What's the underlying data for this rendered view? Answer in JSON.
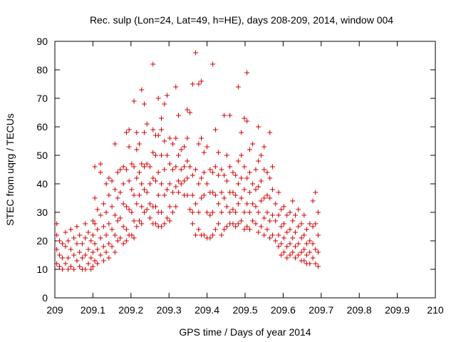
{
  "chart_data": {
    "type": "scatter",
    "title": "Rec. sulp (Lon=24, Lat=49, h=HE), days 208-209, 2014, window 004",
    "xlabel": "GPS time / Days of year 2014",
    "ylabel": "STEC from uqrg / TECUs",
    "xlim": [
      209,
      210
    ],
    "ylim": [
      0,
      90
    ],
    "x_ticks": [
      "209",
      "209.1",
      "209.2",
      "209.3",
      "209.4",
      "209.5",
      "209.6",
      "209.7",
      "209.8",
      "209.9",
      "210"
    ],
    "y_ticks": [
      "0",
      "10",
      "20",
      "30",
      "40",
      "50",
      "60",
      "70",
      "80",
      "90"
    ],
    "marker": "+",
    "color": "#d00000",
    "grid": false,
    "legend": "none",
    "points": [
      [
        209.005,
        26
      ],
      [
        209.005,
        22
      ],
      [
        209.005,
        17
      ],
      [
        209.005,
        12
      ],
      [
        209.012,
        20
      ],
      [
        209.012,
        15
      ],
      [
        209.012,
        11
      ],
      [
        209.02,
        19
      ],
      [
        209.02,
        14
      ],
      [
        209.02,
        10
      ],
      [
        209.028,
        23
      ],
      [
        209.028,
        18
      ],
      [
        209.028,
        12
      ],
      [
        209.035,
        20
      ],
      [
        209.035,
        14
      ],
      [
        209.035,
        10
      ],
      [
        209.042,
        24
      ],
      [
        209.042,
        17
      ],
      [
        209.042,
        11
      ],
      [
        209.05,
        21
      ],
      [
        209.05,
        15
      ],
      [
        209.05,
        10
      ],
      [
        209.058,
        25
      ],
      [
        209.058,
        19
      ],
      [
        209.058,
        13
      ],
      [
        209.065,
        22
      ],
      [
        209.065,
        16
      ],
      [
        209.065,
        11
      ],
      [
        209.072,
        19
      ],
      [
        209.072,
        14
      ],
      [
        209.072,
        10
      ],
      [
        209.08,
        26
      ],
      [
        209.08,
        21
      ],
      [
        209.08,
        15
      ],
      [
        209.08,
        10
      ],
      [
        209.088,
        23
      ],
      [
        209.088,
        17
      ],
      [
        209.088,
        12
      ],
      [
        209.095,
        20
      ],
      [
        209.095,
        14
      ],
      [
        209.095,
        10
      ],
      [
        209.1,
        27
      ],
      [
        209.1,
        22
      ],
      [
        209.1,
        16
      ],
      [
        209.1,
        11
      ],
      [
        209.105,
        46
      ],
      [
        209.105,
        35
      ],
      [
        209.105,
        26
      ],
      [
        209.105,
        19
      ],
      [
        209.105,
        13
      ],
      [
        209.112,
        31
      ],
      [
        209.112,
        24
      ],
      [
        209.112,
        17
      ],
      [
        209.112,
        12
      ],
      [
        209.12,
        47
      ],
      [
        209.12,
        44
      ],
      [
        209.12,
        29
      ],
      [
        209.12,
        21
      ],
      [
        209.12,
        15
      ],
      [
        209.128,
        33
      ],
      [
        209.128,
        25
      ],
      [
        209.128,
        18
      ],
      [
        209.128,
        13
      ],
      [
        209.135,
        40
      ],
      [
        209.135,
        30
      ],
      [
        209.135,
        22
      ],
      [
        209.135,
        16
      ],
      [
        209.142,
        42
      ],
      [
        209.142,
        36
      ],
      [
        209.142,
        26
      ],
      [
        209.142,
        19
      ],
      [
        209.142,
        14
      ],
      [
        209.15,
        41
      ],
      [
        209.15,
        32
      ],
      [
        209.15,
        24
      ],
      [
        209.15,
        18
      ],
      [
        209.158,
        54
      ],
      [
        209.158,
        38
      ],
      [
        209.158,
        29
      ],
      [
        209.158,
        22
      ],
      [
        209.158,
        16
      ],
      [
        209.165,
        44
      ],
      [
        209.165,
        35
      ],
      [
        209.165,
        27
      ],
      [
        209.165,
        20
      ],
      [
        209.172,
        45
      ],
      [
        209.172,
        37
      ],
      [
        209.172,
        28
      ],
      [
        209.172,
        21
      ],
      [
        209.18,
        46
      ],
      [
        209.18,
        40
      ],
      [
        209.18,
        33
      ],
      [
        209.18,
        25
      ],
      [
        209.18,
        19
      ],
      [
        209.188,
        58
      ],
      [
        209.188,
        45
      ],
      [
        209.188,
        32
      ],
      [
        209.188,
        24
      ],
      [
        209.188,
        20
      ],
      [
        209.195,
        59
      ],
      [
        209.195,
        53
      ],
      [
        209.195,
        41
      ],
      [
        209.195,
        31
      ],
      [
        209.195,
        22
      ],
      [
        209.202,
        47
      ],
      [
        209.202,
        38
      ],
      [
        209.202,
        30
      ],
      [
        209.202,
        22
      ],
      [
        209.208,
        69
      ],
      [
        209.208,
        46
      ],
      [
        209.208,
        36
      ],
      [
        209.208,
        27
      ],
      [
        209.208,
        21
      ],
      [
        209.215,
        58
      ],
      [
        209.215,
        52
      ],
      [
        209.215,
        42
      ],
      [
        209.215,
        33
      ],
      [
        209.215,
        25
      ],
      [
        209.222,
        54
      ],
      [
        209.222,
        44
      ],
      [
        209.222,
        36
      ],
      [
        209.222,
        27
      ],
      [
        209.228,
        73
      ],
      [
        209.228,
        47
      ],
      [
        209.228,
        40
      ],
      [
        209.228,
        32
      ],
      [
        209.228,
        26
      ],
      [
        209.235,
        68
      ],
      [
        209.235,
        58
      ],
      [
        209.235,
        46
      ],
      [
        209.235,
        38
      ],
      [
        209.235,
        30
      ],
      [
        209.242,
        61
      ],
      [
        209.242,
        47
      ],
      [
        209.242,
        37
      ],
      [
        209.242,
        31
      ],
      [
        209.25,
        46
      ],
      [
        209.25,
        40
      ],
      [
        209.25,
        33
      ],
      [
        209.25,
        28
      ],
      [
        209.258,
        82
      ],
      [
        209.258,
        59
      ],
      [
        209.258,
        51
      ],
      [
        209.258,
        42
      ],
      [
        209.258,
        32
      ],
      [
        209.258,
        26
      ],
      [
        209.265,
        57
      ],
      [
        209.265,
        50
      ],
      [
        209.265,
        41
      ],
      [
        209.265,
        32
      ],
      [
        209.265,
        26
      ],
      [
        209.272,
        70
      ],
      [
        209.272,
        57
      ],
      [
        209.272,
        44
      ],
      [
        209.272,
        36
      ],
      [
        209.272,
        30
      ],
      [
        209.272,
        25
      ],
      [
        209.28,
        63
      ],
      [
        209.28,
        59
      ],
      [
        209.28,
        50
      ],
      [
        209.28,
        40
      ],
      [
        209.28,
        30
      ],
      [
        209.28,
        25
      ],
      [
        209.288,
        68
      ],
      [
        209.288,
        55
      ],
      [
        209.288,
        45
      ],
      [
        209.288,
        36
      ],
      [
        209.288,
        26
      ],
      [
        209.295,
        71
      ],
      [
        209.295,
        50
      ],
      [
        209.295,
        38
      ],
      [
        209.295,
        28
      ],
      [
        209.302,
        56
      ],
      [
        209.302,
        47
      ],
      [
        209.302,
        40
      ],
      [
        209.302,
        32
      ],
      [
        209.302,
        27
      ],
      [
        209.31,
        54
      ],
      [
        209.31,
        45
      ],
      [
        209.31,
        37
      ],
      [
        209.31,
        30
      ],
      [
        209.318,
        74
      ],
      [
        209.318,
        56
      ],
      [
        209.318,
        46
      ],
      [
        209.318,
        39
      ],
      [
        209.318,
        32
      ],
      [
        209.325,
        64
      ],
      [
        209.325,
        50
      ],
      [
        209.325,
        41
      ],
      [
        209.325,
        37
      ],
      [
        209.332,
        52
      ],
      [
        209.332,
        45
      ],
      [
        209.332,
        40
      ],
      [
        209.34,
        53
      ],
      [
        209.34,
        46
      ],
      [
        209.34,
        41
      ],
      [
        209.34,
        36
      ],
      [
        209.348,
        66
      ],
      [
        209.348,
        56
      ],
      [
        209.348,
        48
      ],
      [
        209.348,
        42
      ],
      [
        209.348,
        36
      ],
      [
        209.355,
        65
      ],
      [
        209.355,
        46
      ],
      [
        209.355,
        31
      ],
      [
        209.362,
        75
      ],
      [
        209.362,
        43
      ],
      [
        209.362,
        36
      ],
      [
        209.362,
        30
      ],
      [
        209.362,
        26
      ],
      [
        209.37,
        86
      ],
      [
        209.37,
        45
      ],
      [
        209.37,
        33
      ],
      [
        209.37,
        22
      ],
      [
        209.378,
        75
      ],
      [
        209.378,
        54
      ],
      [
        209.378,
        40
      ],
      [
        209.378,
        30
      ],
      [
        209.378,
        24
      ],
      [
        209.385,
        76
      ],
      [
        209.385,
        56
      ],
      [
        209.385,
        42
      ],
      [
        209.385,
        35
      ],
      [
        209.385,
        22
      ],
      [
        209.392,
        51
      ],
      [
        209.392,
        44
      ],
      [
        209.392,
        36
      ],
      [
        209.392,
        22
      ],
      [
        209.4,
        53
      ],
      [
        209.4,
        40
      ],
      [
        209.4,
        30
      ],
      [
        209.4,
        21
      ],
      [
        209.408,
        45
      ],
      [
        209.408,
        37
      ],
      [
        209.408,
        29
      ],
      [
        209.408,
        21
      ],
      [
        209.415,
        82
      ],
      [
        209.415,
        44
      ],
      [
        209.415,
        37
      ],
      [
        209.415,
        30
      ],
      [
        209.415,
        22
      ],
      [
        209.422,
        59
      ],
      [
        209.422,
        46
      ],
      [
        209.422,
        36
      ],
      [
        209.422,
        24
      ],
      [
        209.43,
        51
      ],
      [
        209.43,
        43
      ],
      [
        209.43,
        33
      ],
      [
        209.43,
        26
      ],
      [
        209.438,
        45
      ],
      [
        209.438,
        37
      ],
      [
        209.438,
        30
      ],
      [
        209.438,
        22
      ],
      [
        209.445,
        64
      ],
      [
        209.445,
        43
      ],
      [
        209.445,
        35
      ],
      [
        209.445,
        24
      ],
      [
        209.452,
        50
      ],
      [
        209.452,
        41
      ],
      [
        209.452,
        32
      ],
      [
        209.452,
        25
      ],
      [
        209.46,
        64
      ],
      [
        209.46,
        46
      ],
      [
        209.46,
        37
      ],
      [
        209.46,
        30
      ],
      [
        209.46,
        26
      ],
      [
        209.468,
        44
      ],
      [
        209.468,
        37
      ],
      [
        209.468,
        31
      ],
      [
        209.468,
        26
      ],
      [
        209.475,
        43
      ],
      [
        209.475,
        36
      ],
      [
        209.475,
        30
      ],
      [
        209.475,
        25
      ],
      [
        209.482,
        74
      ],
      [
        209.482,
        48
      ],
      [
        209.482,
        40
      ],
      [
        209.482,
        33
      ],
      [
        209.482,
        26
      ],
      [
        209.49,
        58
      ],
      [
        209.49,
        50
      ],
      [
        209.49,
        42
      ],
      [
        209.49,
        35
      ],
      [
        209.49,
        27
      ],
      [
        209.498,
        63
      ],
      [
        209.498,
        46
      ],
      [
        209.498,
        38
      ],
      [
        209.498,
        30
      ],
      [
        209.498,
        24
      ],
      [
        209.505,
        79
      ],
      [
        209.505,
        62
      ],
      [
        209.505,
        42
      ],
      [
        209.505,
        33
      ],
      [
        209.505,
        25
      ],
      [
        209.512,
        52
      ],
      [
        209.512,
        44
      ],
      [
        209.512,
        37
      ],
      [
        209.512,
        30
      ],
      [
        209.512,
        24
      ],
      [
        209.52,
        54
      ],
      [
        209.52,
        40
      ],
      [
        209.52,
        33
      ],
      [
        209.52,
        27
      ],
      [
        209.528,
        45
      ],
      [
        209.528,
        38
      ],
      [
        209.528,
        32
      ],
      [
        209.528,
        26
      ],
      [
        209.535,
        60
      ],
      [
        209.535,
        48
      ],
      [
        209.535,
        39
      ],
      [
        209.535,
        30
      ],
      [
        209.535,
        23
      ],
      [
        209.542,
        50
      ],
      [
        209.542,
        41
      ],
      [
        209.542,
        34
      ],
      [
        209.542,
        25
      ],
      [
        209.55,
        53
      ],
      [
        209.55,
        45
      ],
      [
        209.55,
        35
      ],
      [
        209.55,
        28
      ],
      [
        209.55,
        22
      ],
      [
        209.558,
        44
      ],
      [
        209.558,
        36
      ],
      [
        209.558,
        30
      ],
      [
        209.558,
        24
      ],
      [
        209.565,
        58
      ],
      [
        209.565,
        42
      ],
      [
        209.565,
        35
      ],
      [
        209.565,
        27
      ],
      [
        209.565,
        21
      ],
      [
        209.572,
        46
      ],
      [
        209.572,
        38
      ],
      [
        209.572,
        29
      ],
      [
        209.572,
        22
      ],
      [
        209.58,
        33
      ],
      [
        209.58,
        27
      ],
      [
        209.58,
        20
      ],
      [
        209.588,
        37
      ],
      [
        209.588,
        29
      ],
      [
        209.588,
        22
      ],
      [
        209.588,
        18
      ],
      [
        209.595,
        31
      ],
      [
        209.595,
        25
      ],
      [
        209.595,
        19
      ],
      [
        209.595,
        15
      ],
      [
        209.602,
        32
      ],
      [
        209.602,
        26
      ],
      [
        209.602,
        21
      ],
      [
        209.602,
        16
      ],
      [
        209.61,
        29
      ],
      [
        209.61,
        23
      ],
      [
        209.61,
        18
      ],
      [
        209.61,
        14
      ],
      [
        209.618,
        30
      ],
      [
        209.618,
        24
      ],
      [
        209.618,
        19
      ],
      [
        209.618,
        15
      ],
      [
        209.625,
        34
      ],
      [
        209.625,
        27
      ],
      [
        209.625,
        21
      ],
      [
        209.625,
        16
      ],
      [
        209.632,
        29
      ],
      [
        209.632,
        23
      ],
      [
        209.632,
        18
      ],
      [
        209.632,
        14
      ],
      [
        209.64,
        31
      ],
      [
        209.64,
        25
      ],
      [
        209.64,
        19
      ],
      [
        209.64,
        15
      ],
      [
        209.648,
        26
      ],
      [
        209.648,
        21
      ],
      [
        209.648,
        16
      ],
      [
        209.648,
        13
      ],
      [
        209.655,
        29
      ],
      [
        209.655,
        22
      ],
      [
        209.655,
        17
      ],
      [
        209.655,
        13
      ],
      [
        209.662,
        24
      ],
      [
        209.662,
        19
      ],
      [
        209.662,
        15
      ],
      [
        209.662,
        12
      ],
      [
        209.67,
        26
      ],
      [
        209.67,
        20
      ],
      [
        209.67,
        16
      ],
      [
        209.67,
        12
      ],
      [
        209.678,
        34
      ],
      [
        209.678,
        25
      ],
      [
        209.678,
        19
      ],
      [
        209.678,
        14
      ],
      [
        209.685,
        37
      ],
      [
        209.685,
        26
      ],
      [
        209.685,
        17
      ],
      [
        209.685,
        12
      ],
      [
        209.692,
        30
      ],
      [
        209.692,
        22
      ],
      [
        209.692,
        16
      ],
      [
        209.692,
        11
      ]
    ]
  }
}
